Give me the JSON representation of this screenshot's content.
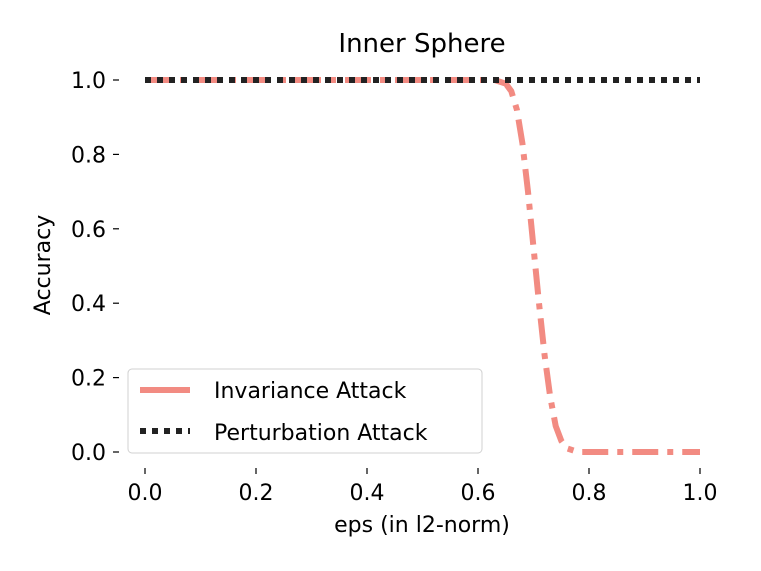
{
  "chart_data": {
    "type": "line",
    "title": "Inner Sphere",
    "xlabel": "eps (in l2-norm)",
    "ylabel": "Accuracy",
    "xlim": [
      0.0,
      1.0
    ],
    "ylim": [
      0.0,
      1.0
    ],
    "xticks": [
      "0.0",
      "0.2",
      "0.4",
      "0.6",
      "0.8",
      "1.0"
    ],
    "yticks": [
      "0.0",
      "0.2",
      "0.4",
      "0.6",
      "0.8",
      "1.0"
    ],
    "grid": false,
    "legend_position": "lower-left",
    "series": [
      {
        "name": "Invariance Attack",
        "color": "#f28b82",
        "style": "dashdot",
        "x": [
          0.0,
          0.05,
          0.1,
          0.15,
          0.2,
          0.25,
          0.3,
          0.35,
          0.4,
          0.45,
          0.5,
          0.55,
          0.6,
          0.63,
          0.65,
          0.66,
          0.67,
          0.68,
          0.69,
          0.7,
          0.71,
          0.72,
          0.73,
          0.74,
          0.75,
          0.76,
          0.78,
          0.8,
          0.85,
          0.9,
          0.95,
          1.0
        ],
        "y": [
          1.0,
          1.0,
          1.0,
          1.0,
          1.0,
          1.0,
          1.0,
          1.0,
          1.0,
          1.0,
          1.0,
          1.0,
          1.0,
          1.0,
          0.99,
          0.97,
          0.92,
          0.83,
          0.7,
          0.55,
          0.4,
          0.26,
          0.15,
          0.07,
          0.03,
          0.01,
          0.0,
          0.0,
          0.0,
          0.0,
          0.0,
          0.0
        ]
      },
      {
        "name": "Perturbation Attack",
        "color": "#222222",
        "style": "dotted",
        "x": [
          0.0,
          0.2,
          0.4,
          0.6,
          0.8,
          1.0
        ],
        "y": [
          1.0,
          1.0,
          1.0,
          1.0,
          1.0,
          1.0
        ]
      }
    ]
  }
}
